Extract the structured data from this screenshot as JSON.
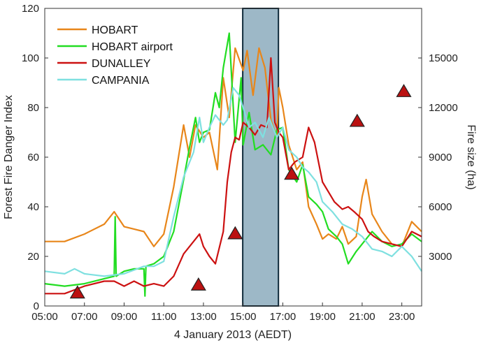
{
  "chart_data": {
    "type": "line",
    "xlabel": "4 January 2013 (AEDT)",
    "ylabel_left": "Forest Fire Danger Index",
    "ylabel_right": "Fire size (ha)",
    "x_ticks": [
      "05:00",
      "07:00",
      "09:00",
      "11:00",
      "13:00",
      "15:00",
      "17:00",
      "19:00",
      "21:00",
      "23:00"
    ],
    "x_range_hours": [
      5,
      24
    ],
    "y_left_ticks": [
      "0",
      "20",
      "40",
      "60",
      "80",
      "100",
      "120"
    ],
    "y_left_range": [
      0,
      120
    ],
    "y_right_ticks": [
      "3000",
      "6000",
      "9000",
      "12000",
      "15000"
    ],
    "y_right_range": [
      0,
      18000
    ],
    "grid": false,
    "legend_position": "top-left",
    "highlight_band": {
      "from_hour": 14.98,
      "to_hour": 16.78,
      "color": "#9db8c7"
    },
    "series": [
      {
        "name": "HOBART",
        "color": "#e8861a",
        "points": [
          [
            5,
            26
          ],
          [
            6,
            26
          ],
          [
            7,
            29
          ],
          [
            8,
            33
          ],
          [
            8.5,
            38
          ],
          [
            9,
            32
          ],
          [
            9.5,
            31
          ],
          [
            10,
            30
          ],
          [
            10.5,
            24
          ],
          [
            11,
            29
          ],
          [
            11.5,
            48
          ],
          [
            12,
            73
          ],
          [
            12.3,
            60
          ],
          [
            12.6,
            73
          ],
          [
            13,
            68
          ],
          [
            13.3,
            70
          ],
          [
            13.7,
            55
          ],
          [
            14,
            92
          ],
          [
            14.3,
            76
          ],
          [
            14.6,
            104
          ],
          [
            15,
            95
          ],
          [
            15.2,
            103
          ],
          [
            15.5,
            85
          ],
          [
            15.8,
            104
          ],
          [
            16.1,
            96
          ],
          [
            16.4,
            75
          ],
          [
            16.7,
            68
          ],
          [
            16.8,
            88
          ],
          [
            17,
            80
          ],
          [
            17.3,
            65
          ],
          [
            17.7,
            55
          ],
          [
            18,
            58
          ],
          [
            18.3,
            40
          ],
          [
            18.7,
            33
          ],
          [
            19,
            27
          ],
          [
            19.3,
            29
          ],
          [
            19.7,
            27
          ],
          [
            20,
            32
          ],
          [
            20.3,
            25
          ],
          [
            20.7,
            28
          ],
          [
            21,
            44
          ],
          [
            21.2,
            51
          ],
          [
            21.5,
            37
          ],
          [
            22,
            30
          ],
          [
            22.5,
            25
          ],
          [
            23,
            24
          ],
          [
            23.5,
            34
          ],
          [
            24,
            30
          ]
        ]
      },
      {
        "name": "HOBART airport",
        "color": "#22dd22",
        "points": [
          [
            5,
            9
          ],
          [
            6,
            8
          ],
          [
            7,
            9
          ],
          [
            8,
            11
          ],
          [
            8.5,
            12
          ],
          [
            8.55,
            36
          ],
          [
            8.6,
            12
          ],
          [
            9,
            14
          ],
          [
            9.5,
            15
          ],
          [
            10,
            15
          ],
          [
            10.05,
            4
          ],
          [
            10.1,
            16
          ],
          [
            10.5,
            17
          ],
          [
            11,
            20
          ],
          [
            11.5,
            30
          ],
          [
            12,
            51
          ],
          [
            12.3,
            64
          ],
          [
            12.6,
            76
          ],
          [
            12.8,
            66
          ],
          [
            13,
            70
          ],
          [
            13.3,
            71
          ],
          [
            13.6,
            86
          ],
          [
            13.8,
            80
          ],
          [
            14,
            96
          ],
          [
            14.3,
            110
          ],
          [
            14.6,
            66
          ],
          [
            14.9,
            92
          ],
          [
            15,
            65
          ],
          [
            15.3,
            78
          ],
          [
            15.6,
            63
          ],
          [
            16,
            65
          ],
          [
            16.4,
            61
          ],
          [
            16.7,
            71
          ],
          [
            17,
            72
          ],
          [
            17.3,
            55
          ],
          [
            17.7,
            50
          ],
          [
            18,
            57
          ],
          [
            18.3,
            44
          ],
          [
            18.7,
            41
          ],
          [
            19,
            38
          ],
          [
            19.3,
            31
          ],
          [
            19.7,
            28
          ],
          [
            20,
            25
          ],
          [
            20.3,
            17
          ],
          [
            20.7,
            22
          ],
          [
            21,
            25
          ],
          [
            21.5,
            30
          ],
          [
            22,
            26
          ],
          [
            22.5,
            24
          ],
          [
            23,
            25
          ],
          [
            23.5,
            29
          ],
          [
            24,
            26
          ]
        ]
      },
      {
        "name": "DUNALLEY",
        "color": "#cc1111",
        "points": [
          [
            5,
            5
          ],
          [
            6,
            5
          ],
          [
            7,
            8
          ],
          [
            8,
            10
          ],
          [
            8.5,
            10
          ],
          [
            9,
            8
          ],
          [
            9.5,
            10
          ],
          [
            10,
            8
          ],
          [
            10.5,
            9
          ],
          [
            11,
            8
          ],
          [
            11.5,
            12
          ],
          [
            12,
            21
          ],
          [
            12.5,
            26
          ],
          [
            12.8,
            29
          ],
          [
            13,
            24
          ],
          [
            13.3,
            20
          ],
          [
            13.6,
            17
          ],
          [
            14,
            30
          ],
          [
            14.2,
            50
          ],
          [
            14.4,
            62
          ],
          [
            14.6,
            68
          ],
          [
            14.8,
            67
          ],
          [
            15,
            74
          ],
          [
            15.3,
            72
          ],
          [
            15.6,
            69
          ],
          [
            15.9,
            73
          ],
          [
            16.2,
            72
          ],
          [
            16.4,
            100
          ],
          [
            16.6,
            74
          ],
          [
            16.8,
            70
          ],
          [
            17,
            68
          ],
          [
            17.3,
            55
          ],
          [
            17.6,
            58
          ],
          [
            18,
            60
          ],
          [
            18.3,
            72
          ],
          [
            18.6,
            66
          ],
          [
            19,
            50
          ],
          [
            19.3,
            46
          ],
          [
            19.6,
            42
          ],
          [
            20,
            39
          ],
          [
            20.3,
            40
          ],
          [
            20.6,
            38
          ],
          [
            21,
            35
          ],
          [
            21.3,
            30
          ],
          [
            21.6,
            28
          ],
          [
            22,
            26
          ],
          [
            22.5,
            25
          ],
          [
            23,
            24
          ],
          [
            23.5,
            30
          ],
          [
            24,
            28
          ]
        ]
      },
      {
        "name": "CAMPANIA",
        "color": "#7fe0e0",
        "points": [
          [
            5,
            14
          ],
          [
            6,
            13
          ],
          [
            6.5,
            15
          ],
          [
            7,
            13
          ],
          [
            8,
            12
          ],
          [
            9,
            13
          ],
          [
            10,
            16
          ],
          [
            10.5,
            16
          ],
          [
            11,
            18
          ],
          [
            11.5,
            36
          ],
          [
            12,
            52
          ],
          [
            12.5,
            62
          ],
          [
            12.8,
            76
          ],
          [
            13,
            66
          ],
          [
            13.3,
            72
          ],
          [
            13.6,
            77
          ],
          [
            14,
            73
          ],
          [
            14.2,
            75
          ],
          [
            14.5,
            88
          ],
          [
            14.8,
            85
          ],
          [
            15,
            80
          ],
          [
            15.3,
            72
          ],
          [
            15.6,
            74
          ],
          [
            16,
            68
          ],
          [
            16.3,
            76
          ],
          [
            16.7,
            68
          ],
          [
            17,
            72
          ],
          [
            17.3,
            63
          ],
          [
            17.7,
            60
          ],
          [
            18,
            56
          ],
          [
            18.3,
            54
          ],
          [
            18.7,
            50
          ],
          [
            19,
            42
          ],
          [
            19.5,
            38
          ],
          [
            20,
            33
          ],
          [
            20.5,
            31
          ],
          [
            21,
            28
          ],
          [
            21.5,
            23
          ],
          [
            22,
            22
          ],
          [
            22.5,
            20
          ],
          [
            23,
            24
          ],
          [
            23.5,
            20
          ],
          [
            24,
            14
          ]
        ]
      }
    ],
    "fire_size_hours": [
      6.65,
      12.75,
      14.6,
      17.45,
      20.75,
      23.1
    ],
    "fire_size_ha": [
      820,
      1300,
      4400,
      8000,
      11200,
      13000
    ],
    "fire_size_marker": {
      "shape": "triangle",
      "color": "#bb1111"
    }
  }
}
